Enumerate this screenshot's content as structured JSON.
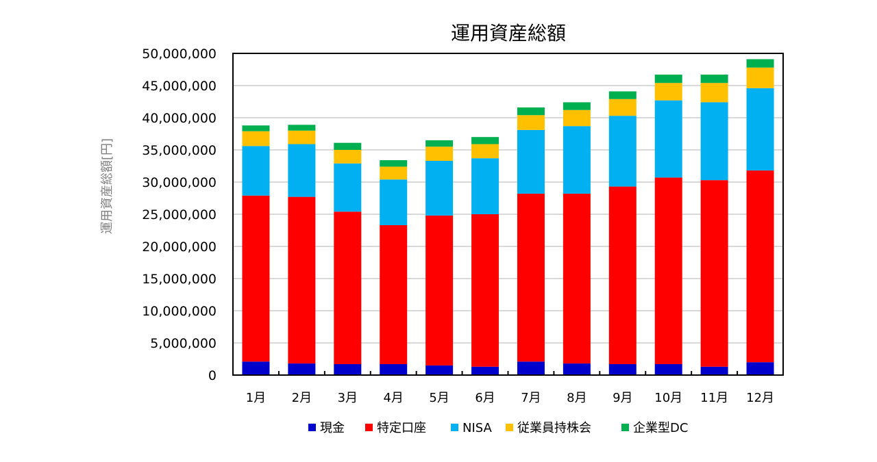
{
  "chart_data": {
    "type": "bar",
    "stacked": true,
    "title": "運用資産総額",
    "xlabel": "",
    "ylabel": "運用資産総額[円]",
    "ylim": [
      0,
      50000000
    ],
    "yticks": [
      "0",
      "5,000,000",
      "10,000,000",
      "15,000,000",
      "20,000,000",
      "25,000,000",
      "30,000,000",
      "35,000,000",
      "40,000,000",
      "45,000,000",
      "50,000,000"
    ],
    "grid": true,
    "legend_position": "bottom",
    "categories": [
      "1月",
      "2月",
      "3月",
      "4月",
      "5月",
      "6月",
      "7月",
      "8月",
      "9月",
      "10月",
      "11月",
      "12月"
    ],
    "series": [
      {
        "name": "現金",
        "color": "#0000CC",
        "values": [
          2100000,
          1800000,
          1700000,
          1700000,
          1500000,
          1300000,
          2100000,
          1800000,
          1700000,
          1700000,
          1300000,
          2000000
        ]
      },
      {
        "name": "特定口座",
        "color": "#FF0000",
        "values": [
          25800000,
          25900000,
          23700000,
          21600000,
          23300000,
          23700000,
          26100000,
          26400000,
          27600000,
          29000000,
          29000000,
          29800000
        ]
      },
      {
        "name": "NISA",
        "color": "#00B0F0",
        "values": [
          7700000,
          8200000,
          7500000,
          7100000,
          8500000,
          8700000,
          9900000,
          10500000,
          11000000,
          12000000,
          12100000,
          12800000
        ]
      },
      {
        "name": "従業員持株会",
        "color": "#FFC000",
        "values": [
          2300000,
          2100000,
          2100000,
          2000000,
          2200000,
          2200000,
          2300000,
          2500000,
          2600000,
          2700000,
          3000000,
          3200000
        ]
      },
      {
        "name": "企業型DC",
        "color": "#00B050",
        "values": [
          900000,
          900000,
          1100000,
          1000000,
          1000000,
          1100000,
          1200000,
          1200000,
          1200000,
          1300000,
          1300000,
          1300000
        ]
      }
    ]
  }
}
